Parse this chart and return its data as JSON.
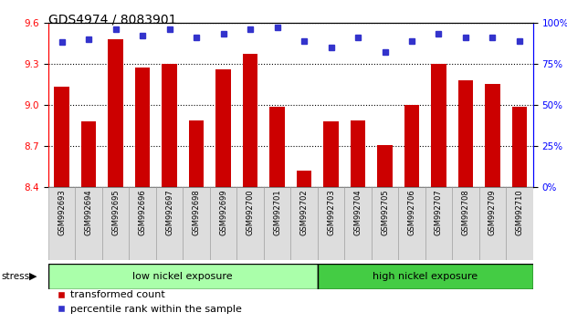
{
  "title": "GDS4974 / 8083901",
  "samples": [
    "GSM992693",
    "GSM992694",
    "GSM992695",
    "GSM992696",
    "GSM992697",
    "GSM992698",
    "GSM992699",
    "GSM992700",
    "GSM992701",
    "GSM992702",
    "GSM992703",
    "GSM992704",
    "GSM992705",
    "GSM992706",
    "GSM992707",
    "GSM992708",
    "GSM992709",
    "GSM992710"
  ],
  "bar_values": [
    9.13,
    8.88,
    9.48,
    9.27,
    9.3,
    8.89,
    9.26,
    9.37,
    8.99,
    8.52,
    8.88,
    8.89,
    8.71,
    9.0,
    9.3,
    9.18,
    9.15,
    8.99
  ],
  "percentile_values": [
    88,
    90,
    96,
    92,
    96,
    91,
    93,
    96,
    97,
    89,
    85,
    91,
    82,
    89,
    93,
    91,
    91,
    89
  ],
  "bar_color": "#cc0000",
  "dot_color": "#3333cc",
  "ylim_left": [
    8.4,
    9.6
  ],
  "yticks_left": [
    8.4,
    8.7,
    9.0,
    9.3,
    9.6
  ],
  "ylim_right": [
    0,
    100
  ],
  "yticks_right": [
    0,
    25,
    50,
    75,
    100
  ],
  "group1_label": "low nickel exposure",
  "group2_label": "high nickel exposure",
  "group1_count": 10,
  "group2_count": 8,
  "group1_color": "#aaffaa",
  "group2_color": "#44cc44",
  "stress_label": "stress",
  "legend_bar_label": "transformed count",
  "legend_dot_label": "percentile rank within the sample",
  "tick_fontsize": 7.5,
  "title_fontsize": 10,
  "sample_fontsize": 6,
  "group_fontsize": 8,
  "legend_fontsize": 8
}
